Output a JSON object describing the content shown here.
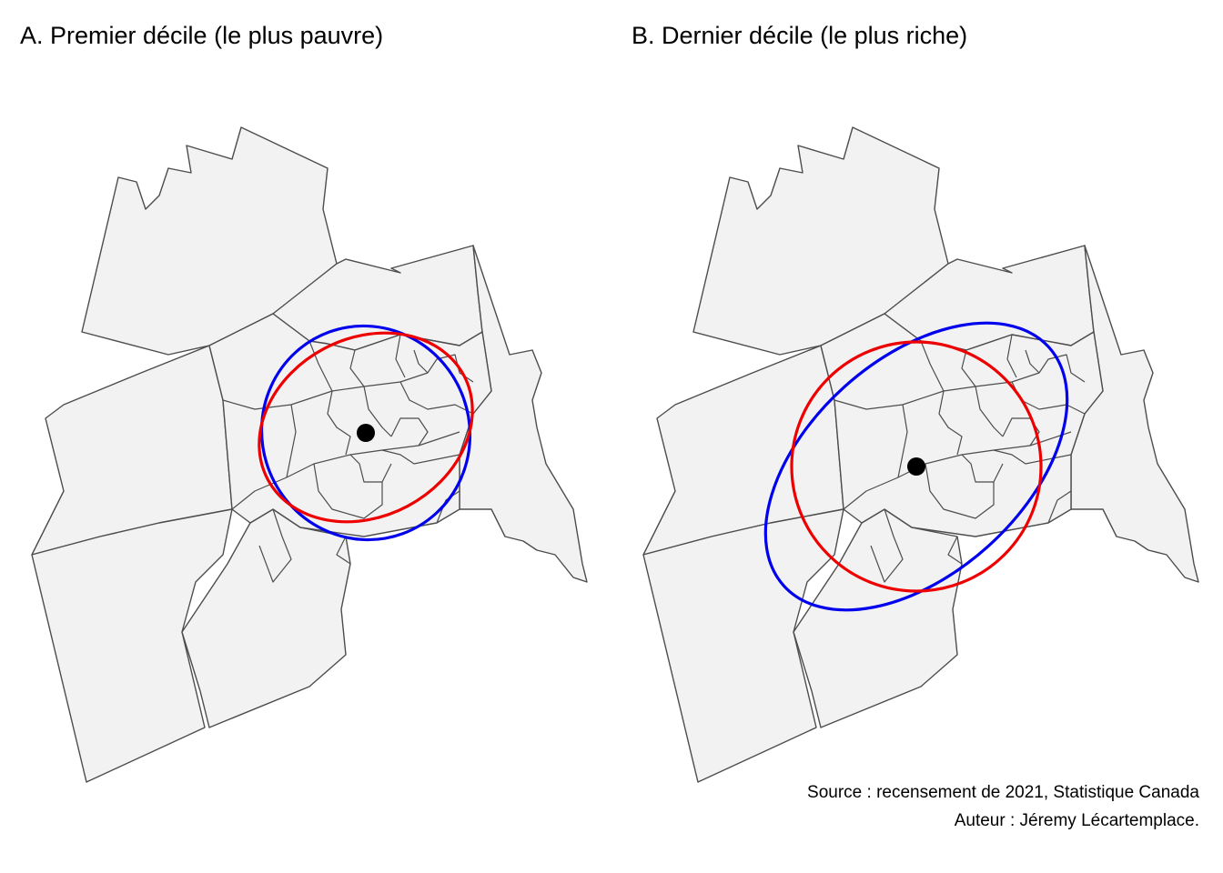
{
  "panels": [
    {
      "id": "A",
      "title": "A. Premier décile (le plus pauvre)",
      "ellipse_colors": {
        "blue": "#0000ee",
        "red": "#ee0000"
      },
      "center_point_color": "#000000"
    },
    {
      "id": "B",
      "title": "B. Dernier décile (le plus riche)",
      "ellipse_colors": {
        "blue": "#0000ee",
        "red": "#ee0000"
      },
      "center_point_color": "#000000"
    }
  ],
  "caption": {
    "source": "Source : recensement de 2021, Statistique Canada",
    "author": "Auteur : Jéremy Lécartemplace."
  },
  "map_style": {
    "fill": "#f2f2f2",
    "border": "#4d4d4d"
  }
}
